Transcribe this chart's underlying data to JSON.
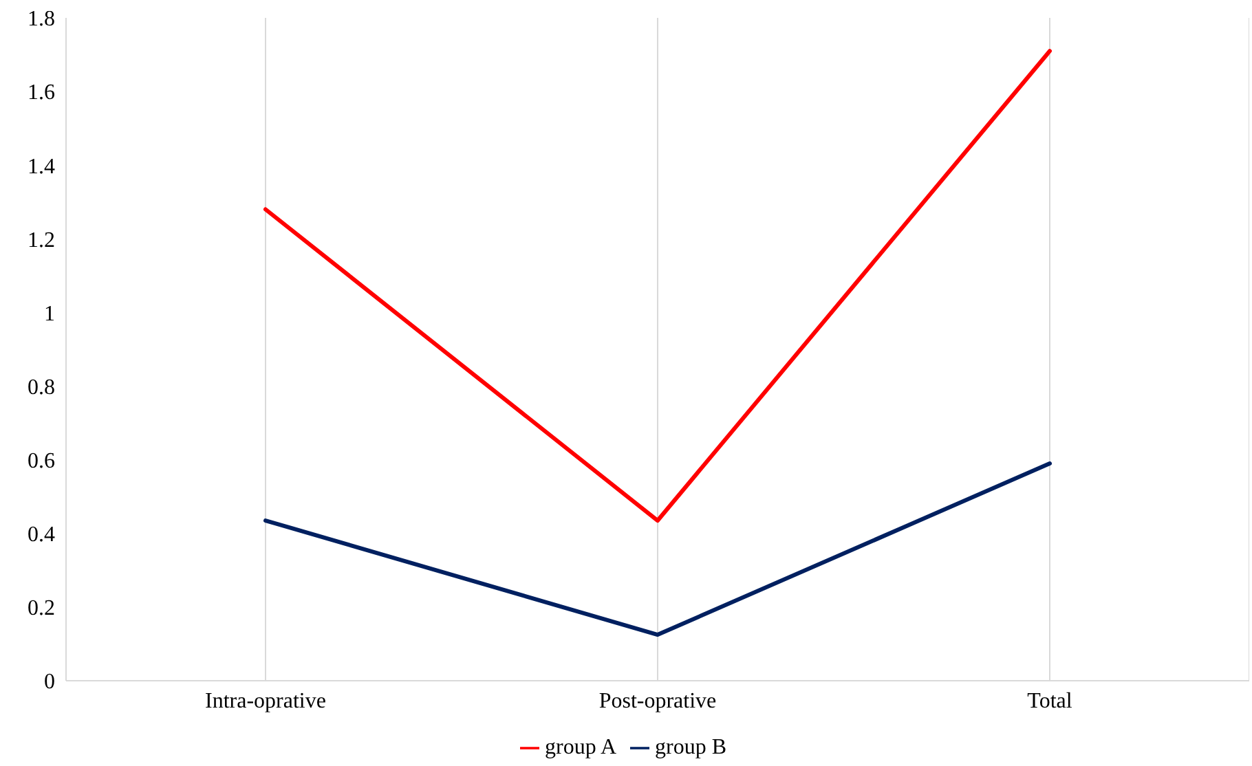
{
  "chart_data": {
    "type": "line",
    "categories": [
      "Intra-oprative",
      "Post-oprative",
      "Total"
    ],
    "series": [
      {
        "name": "group A",
        "color": "#ff0000",
        "values": [
          1.28,
          0.435,
          1.71
        ]
      },
      {
        "name": "group B",
        "color": "#002060",
        "values": [
          0.435,
          0.125,
          0.59
        ]
      }
    ],
    "ylim": [
      0,
      1.8
    ],
    "yticks": [
      0,
      0.2,
      0.4,
      0.6,
      0.8,
      1,
      1.2,
      1.4,
      1.6,
      1.8
    ],
    "grid": "x",
    "legend": "bottom",
    "marker": "none",
    "line_style": "solid"
  }
}
